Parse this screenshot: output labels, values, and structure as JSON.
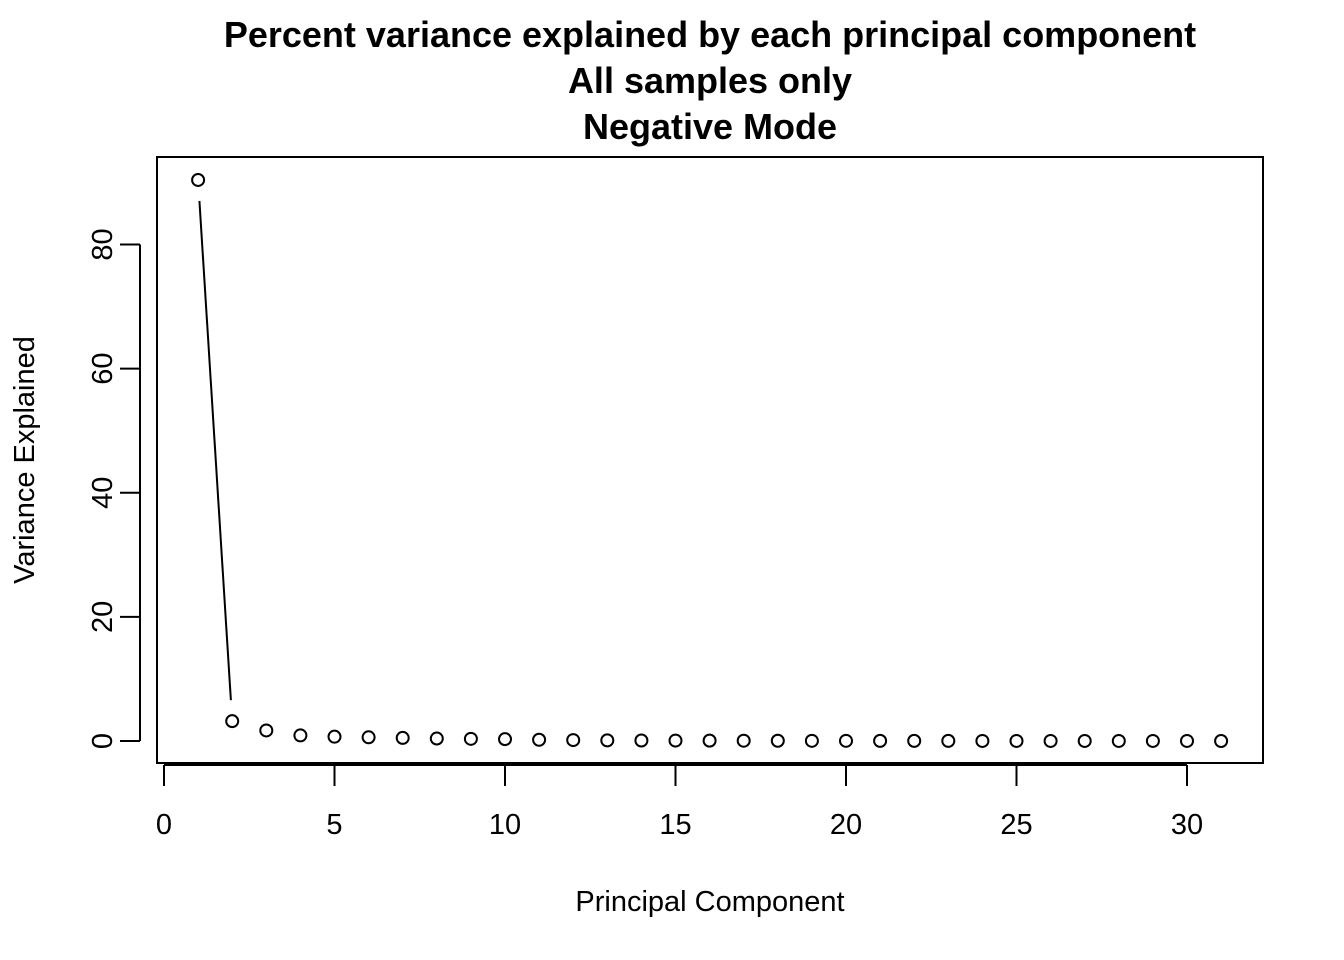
{
  "chart_data": {
    "type": "scatter",
    "title": "Percent variance explained by each principal component",
    "subtitle": [
      "All samples only",
      "Negative Mode"
    ],
    "xlabel": "Principal Component",
    "ylabel": "Variance Explained",
    "xlim": [
      0,
      31
    ],
    "ylim": [
      0,
      90.4
    ],
    "xticks": [
      0,
      5,
      10,
      15,
      20,
      25,
      30
    ],
    "yticks": [
      0,
      20,
      40,
      60,
      80
    ],
    "grid": false,
    "x": [
      1,
      2,
      3,
      4,
      5,
      6,
      7,
      8,
      9,
      10,
      11,
      12,
      13,
      14,
      15,
      16,
      17,
      18,
      19,
      20,
      21,
      22,
      23,
      24,
      25,
      26,
      27,
      28,
      29,
      30,
      31
    ],
    "values": [
      90.4,
      3.2,
      1.7,
      0.9,
      0.7,
      0.6,
      0.5,
      0.4,
      0.35,
      0.3,
      0.2,
      0.15,
      0.1,
      0.08,
      0.07,
      0.06,
      0.05,
      0.04,
      0.03,
      0.03,
      0.02,
      0.02,
      0.02,
      0.01,
      0.01,
      0.01,
      0.01,
      0.01,
      0.01,
      0.01,
      0.0
    ],
    "line_points": 2
  }
}
